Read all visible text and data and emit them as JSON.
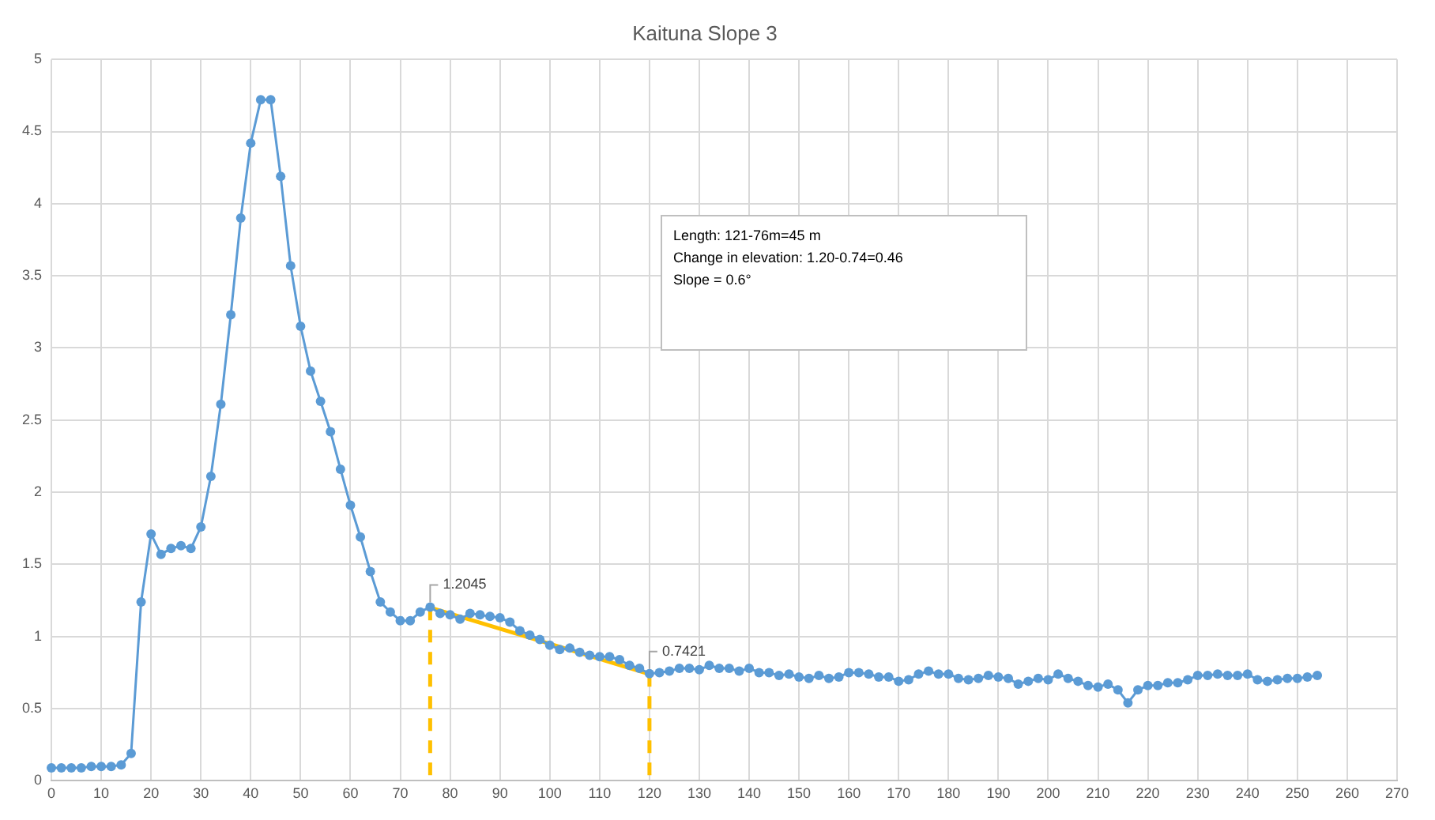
{
  "chart_data": {
    "type": "line",
    "title": "Kaituna Slope 3",
    "annotations": [
      "Length: 121-76m=45 m",
      "Change in elevation: 1.20-0.74=0.46",
      "Slope = 0.6°"
    ],
    "xlim": [
      0,
      270
    ],
    "xticks": [
      0,
      10,
      20,
      30,
      40,
      50,
      60,
      70,
      80,
      90,
      100,
      110,
      120,
      130,
      140,
      150,
      160,
      170,
      180,
      190,
      200,
      210,
      220,
      230,
      240,
      250,
      260,
      270
    ],
    "ylim": [
      0,
      5
    ],
    "yticks": [
      0,
      0.5,
      1,
      1.5,
      2,
      2.5,
      3,
      3.5,
      4,
      4.5,
      5
    ],
    "grid": true,
    "legend": false,
    "series": [
      {
        "color": "#5b9bd5",
        "marker": "circle",
        "line_style": "solid",
        "x": [
          0,
          2,
          4,
          6,
          8,
          10,
          12,
          14,
          16,
          18,
          20,
          22,
          24,
          26,
          28,
          30,
          32,
          34,
          36,
          38,
          40,
          42,
          44,
          46,
          48,
          50,
          52,
          54,
          56,
          58,
          60,
          62,
          64,
          66,
          68,
          70,
          72,
          74,
          76,
          78,
          80,
          82,
          84,
          86,
          88,
          90,
          92,
          94,
          96,
          98,
          100,
          102,
          104,
          106,
          108,
          110,
          112,
          114,
          116,
          118,
          120,
          122,
          124,
          126,
          128,
          130,
          132,
          134,
          136,
          138,
          140,
          142,
          144,
          146,
          148,
          150,
          152,
          154,
          156,
          158,
          160,
          162,
          164,
          166,
          168,
          170,
          172,
          174,
          176,
          178,
          180,
          182,
          184,
          186,
          188,
          190,
          192,
          194,
          196,
          198,
          200,
          202,
          204,
          206,
          208,
          210,
          212,
          214,
          216,
          218,
          220,
          222,
          224,
          226,
          228,
          230,
          232,
          234,
          236,
          238,
          240,
          242,
          244,
          246,
          248,
          250,
          252,
          254
        ],
        "values": [
          0.09,
          0.09,
          0.09,
          0.09,
          0.1,
          0.1,
          0.1,
          0.11,
          0.19,
          1.24,
          1.71,
          1.57,
          1.61,
          1.63,
          1.61,
          1.76,
          2.11,
          2.61,
          3.23,
          3.9,
          4.42,
          4.72,
          4.72,
          4.19,
          3.57,
          3.15,
          2.84,
          2.63,
          2.42,
          2.16,
          1.91,
          1.69,
          1.45,
          1.24,
          1.17,
          1.11,
          1.11,
          1.17,
          1.2045,
          1.16,
          1.15,
          1.12,
          1.16,
          1.15,
          1.14,
          1.13,
          1.1,
          1.04,
          1.01,
          0.98,
          0.94,
          0.91,
          0.92,
          0.89,
          0.87,
          0.86,
          0.86,
          0.84,
          0.8,
          0.78,
          0.7421,
          0.75,
          0.76,
          0.78,
          0.78,
          0.77,
          0.8,
          0.78,
          0.78,
          0.76,
          0.78,
          0.75,
          0.75,
          0.73,
          0.74,
          0.72,
          0.71,
          0.73,
          0.71,
          0.72,
          0.75,
          0.75,
          0.74,
          0.72,
          0.72,
          0.69,
          0.7,
          0.74,
          0.76,
          0.74,
          0.74,
          0.71,
          0.7,
          0.71,
          0.73,
          0.72,
          0.71,
          0.67,
          0.69,
          0.71,
          0.7,
          0.74,
          0.71,
          0.69,
          0.66,
          0.65,
          0.67,
          0.63,
          0.54,
          0.63,
          0.66,
          0.66,
          0.68,
          0.68,
          0.7,
          0.73,
          0.73,
          0.74,
          0.73,
          0.73,
          0.74,
          0.7,
          0.69,
          0.7,
          0.71,
          0.71,
          0.72,
          0.73
        ],
        "value_labels": [
          null,
          null,
          null,
          null,
          null,
          null,
          null,
          null,
          null,
          null,
          null,
          null,
          null,
          null,
          null,
          null,
          null,
          null,
          null,
          null,
          null,
          null,
          null,
          null,
          null,
          null,
          null,
          null,
          null,
          null,
          null,
          null,
          null,
          null,
          null,
          null,
          null,
          null,
          "1.2045",
          null,
          null,
          null,
          null,
          null,
          null,
          null,
          null,
          null,
          null,
          null,
          null,
          null,
          null,
          null,
          null,
          null,
          null,
          null,
          null,
          null,
          "0.7421",
          null,
          null,
          null,
          null,
          null,
          null,
          null,
          null,
          null,
          null,
          null,
          null,
          null,
          null,
          null,
          null,
          null,
          null,
          null,
          null,
          null,
          null,
          null,
          null,
          null,
          null,
          null,
          null,
          null,
          null,
          null,
          null,
          null,
          null,
          null,
          null,
          null,
          null,
          null,
          null,
          null,
          null,
          null,
          null,
          null,
          null,
          null,
          null,
          null,
          null,
          null,
          null,
          null,
          null,
          null,
          null,
          null,
          null,
          null,
          null,
          null,
          null,
          null,
          null,
          null,
          null,
          null
        ]
      },
      {
        "color": "#ffc000",
        "marker": "none",
        "line_style": "solid",
        "x": [
          76,
          120
        ],
        "values": [
          1.2,
          0.74
        ]
      },
      {
        "color": "#ffc000",
        "marker": "none",
        "line_style": "dashed",
        "x": [
          76,
          76
        ],
        "values": [
          1.2,
          0
        ]
      },
      {
        "color": "#ffc000",
        "marker": "none",
        "line_style": "dashed",
        "x": [
          120,
          120
        ],
        "values": [
          0.74,
          0
        ]
      }
    ]
  }
}
